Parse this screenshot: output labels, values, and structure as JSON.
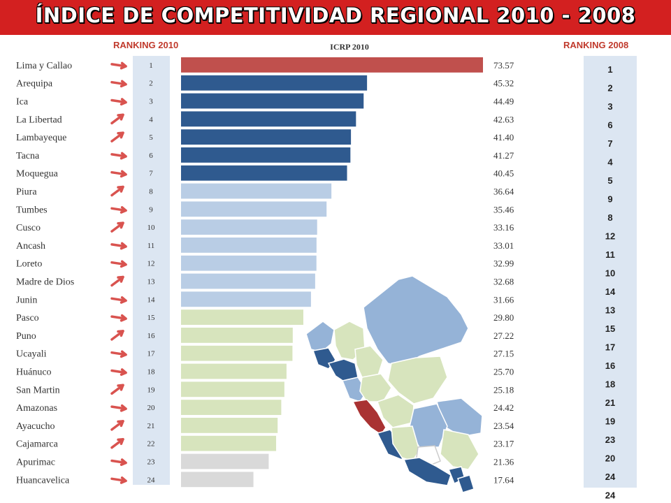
{
  "header": {
    "title": "ÍNDICE DE COMPETITIVIDAD REGIONAL  2010 - 2008",
    "ranking_2010_label": "RANKING 2010",
    "ranking_2008_label": "RANKING 2008"
  },
  "colors": {
    "header_bg": "#d32020",
    "rank_label": "#c0392b",
    "arrow": "#d9534f",
    "rank_col_bg": "#dce6f2",
    "tier_top": "#c0504d",
    "tier_high": "#2f5a8f",
    "tier_mid": "#b9cde5",
    "tier_low": "#d7e4bd",
    "tier_bottom": "#d9d9d9",
    "map_dark": "#2f5a8f",
    "map_mid": "#95b3d7",
    "map_light": "#d7e4bd",
    "map_white": "#ffffff",
    "map_red": "#a93232"
  },
  "chart_data": {
    "type": "bar",
    "orientation": "horizontal",
    "title": "ICRP 2010",
    "categories": [
      "Lima y Callao",
      "Arequipa",
      "Ica",
      "La Libertad",
      "Lambayeque",
      "Tacna",
      "Moquegua",
      "Piura",
      "Tumbes",
      "Cusco",
      "Ancash",
      "Loreto",
      "Madre de Dios",
      "Junin",
      "Pasco",
      "Puno",
      "Ucayali",
      "Huánuco",
      "San Martin",
      "Amazonas",
      "Ayacucho",
      "Cajamarca",
      "Apurimac",
      "Huancavelica"
    ],
    "ranking_2010": [
      1,
      2,
      3,
      4,
      5,
      6,
      7,
      8,
      9,
      10,
      11,
      12,
      13,
      14,
      15,
      16,
      17,
      18,
      19,
      20,
      21,
      22,
      23,
      24
    ],
    "values": [
      73.57,
      45.32,
      44.49,
      42.63,
      41.4,
      41.27,
      40.45,
      36.64,
      35.46,
      33.16,
      33.01,
      32.99,
      32.68,
      31.66,
      29.8,
      27.22,
      27.15,
      25.7,
      25.18,
      24.42,
      23.54,
      23.17,
      21.36,
      17.64
    ],
    "value_labels": [
      "73.57",
      "45.32",
      "44.49",
      "42.63",
      "41.40",
      "41.27",
      "40.45",
      "36.64",
      "35.46",
      "33.16",
      "33.01",
      "32.99",
      "32.68",
      "31.66",
      "29.80",
      "27.22",
      "27.15",
      "25.70",
      "25.18",
      "24.42",
      "23.54",
      "23.17",
      "21.36",
      "17.64"
    ],
    "ranking_2008": [
      1,
      2,
      3,
      6,
      7,
      4,
      5,
      9,
      8,
      12,
      11,
      10,
      14,
      13,
      15,
      17,
      16,
      18,
      21,
      19,
      23,
      20,
      24,
      24
    ],
    "tiers": [
      "top",
      "high",
      "high",
      "high",
      "high",
      "high",
      "high",
      "mid",
      "mid",
      "mid",
      "mid",
      "mid",
      "mid",
      "mid",
      "low",
      "low",
      "low",
      "low",
      "low",
      "low",
      "low",
      "low",
      "bottom",
      "bottom"
    ],
    "arrows": [
      "right",
      "right",
      "right",
      "up",
      "up",
      "right",
      "right",
      "up",
      "right",
      "up",
      "right",
      "right",
      "up",
      "right",
      "right",
      "up",
      "right",
      "right",
      "up",
      "right",
      "up",
      "up",
      "right",
      "right"
    ],
    "xlim": [
      0,
      73.57
    ]
  }
}
